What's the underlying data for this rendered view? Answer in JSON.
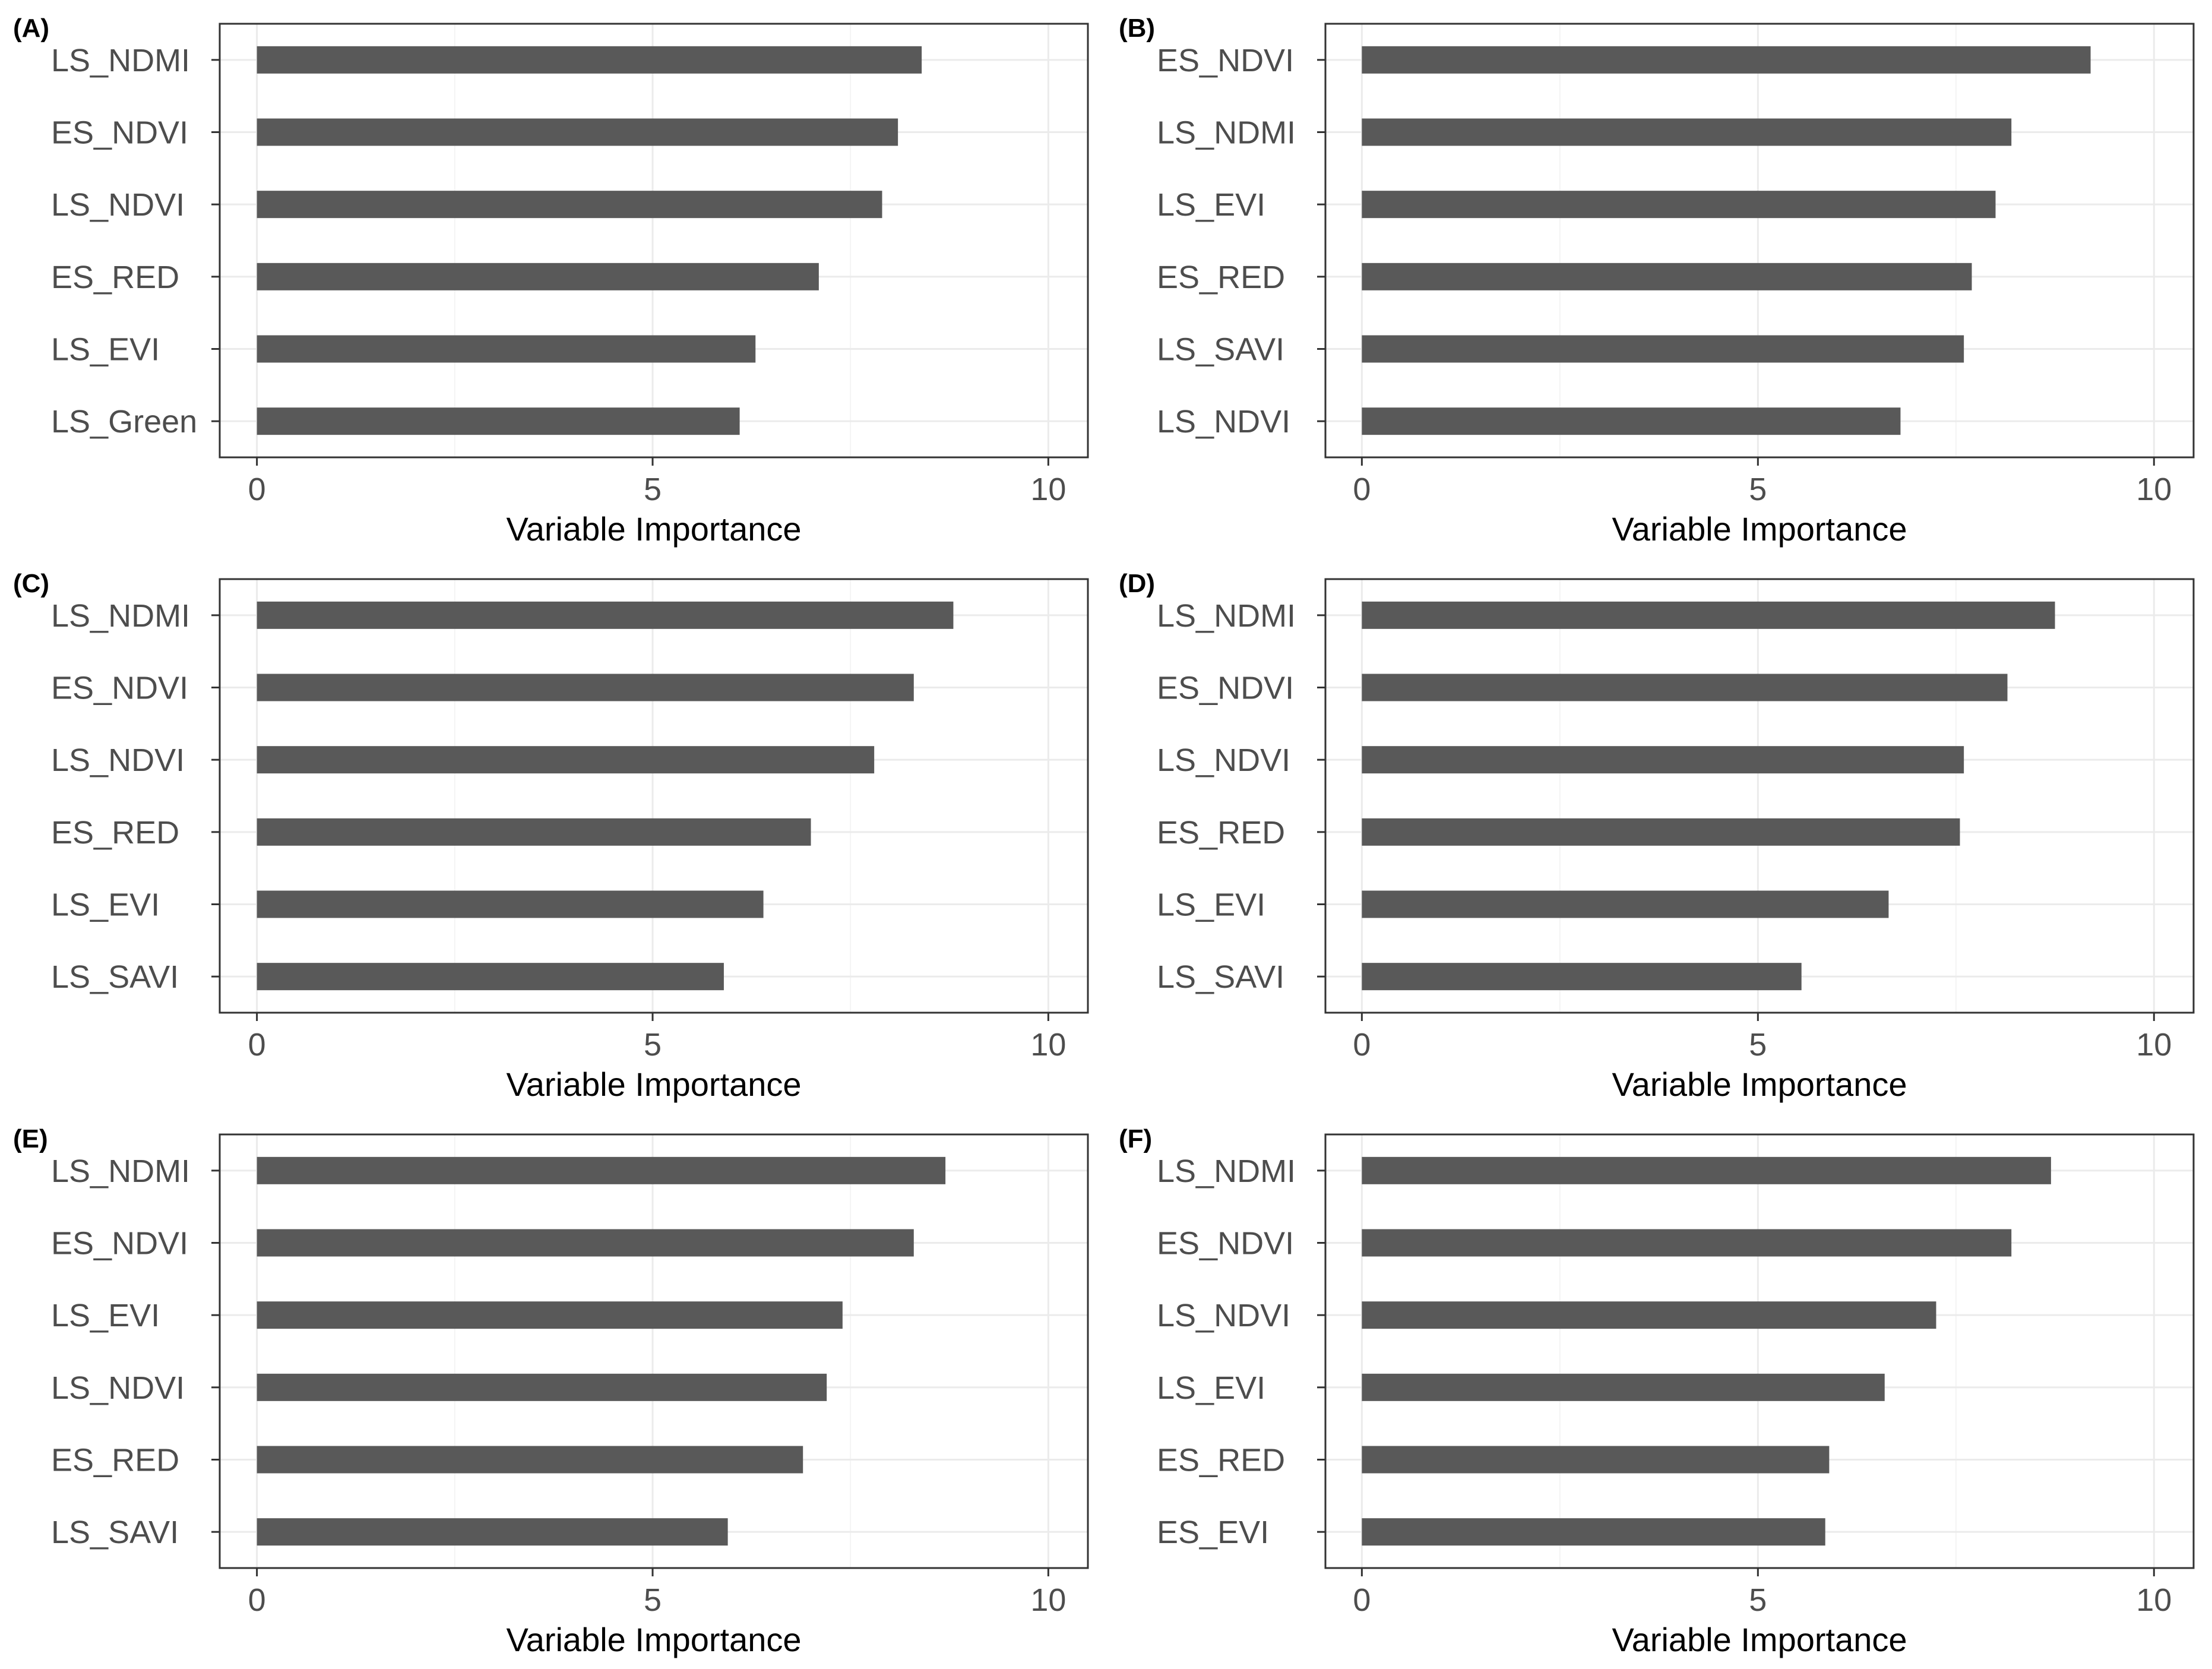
{
  "chart_data": [
    {
      "tag": "(A)",
      "type": "bar",
      "orientation": "horizontal",
      "categories": [
        "LS_NDMI",
        "ES_NDVI",
        "LS_NDVI",
        "ES_RED",
        "LS_EVI",
        "LS_Green"
      ],
      "values": [
        8.4,
        8.1,
        7.9,
        7.1,
        6.3,
        6.1
      ],
      "xlabel": "Variable Importance",
      "ylabel": "",
      "xlim": [
        -0.47,
        10.5
      ],
      "xticks": [
        "0",
        "5",
        "10"
      ]
    },
    {
      "tag": "(B)",
      "type": "bar",
      "orientation": "horizontal",
      "categories": [
        "ES_NDVI",
        "LS_NDMI",
        "LS_EVI",
        "ES_RED",
        "LS_SAVI",
        "LS_NDVI"
      ],
      "values": [
        9.2,
        8.2,
        8.0,
        7.7,
        7.6,
        6.8
      ],
      "xlabel": "Variable Importance",
      "ylabel": "",
      "xlim": [
        -0.46,
        10.5
      ],
      "xticks": [
        "0",
        "5",
        "10"
      ]
    },
    {
      "tag": "(C)",
      "type": "bar",
      "orientation": "horizontal",
      "categories": [
        "LS_NDMI",
        "ES_NDVI",
        "LS_NDVI",
        "ES_RED",
        "LS_EVI",
        "LS_SAVI"
      ],
      "values": [
        8.8,
        8.3,
        7.8,
        7.0,
        6.4,
        5.9
      ],
      "xlabel": "Variable Importance",
      "ylabel": "",
      "xlim": [
        -0.47,
        10.5
      ],
      "xticks": [
        "0",
        "5",
        "10"
      ]
    },
    {
      "tag": "(D)",
      "type": "bar",
      "orientation": "horizontal",
      "categories": [
        "LS_NDMI",
        "ES_NDVI",
        "LS_NDVI",
        "ES_RED",
        "LS_EVI",
        "LS_SAVI"
      ],
      "values": [
        8.75,
        8.15,
        7.6,
        7.55,
        6.65,
        5.55
      ],
      "xlabel": "Variable Importance",
      "ylabel": "",
      "xlim": [
        -0.46,
        10.5
      ],
      "xticks": [
        "0",
        "5",
        "10"
      ]
    },
    {
      "tag": "(E)",
      "type": "bar",
      "orientation": "horizontal",
      "categories": [
        "LS_NDMI",
        "ES_NDVI",
        "LS_EVI",
        "LS_NDVI",
        "ES_RED",
        "LS_SAVI"
      ],
      "values": [
        8.7,
        8.3,
        7.4,
        7.2,
        6.9,
        5.95
      ],
      "xlabel": "Variable Importance",
      "ylabel": "",
      "xlim": [
        -0.47,
        10.5
      ],
      "xticks": [
        "0",
        "5",
        "10"
      ]
    },
    {
      "tag": "(F)",
      "type": "bar",
      "orientation": "horizontal",
      "categories": [
        "LS_NDMI",
        "ES_NDVI",
        "LS_NDVI",
        "LS_EVI",
        "ES_RED",
        "ES_EVI"
      ],
      "values": [
        8.7,
        8.2,
        7.25,
        6.6,
        5.9,
        5.85
      ],
      "xlabel": "Variable Importance",
      "ylabel": "",
      "xlim": [
        -0.46,
        10.5
      ],
      "xticks": [
        "0",
        "5",
        "10"
      ]
    }
  ]
}
